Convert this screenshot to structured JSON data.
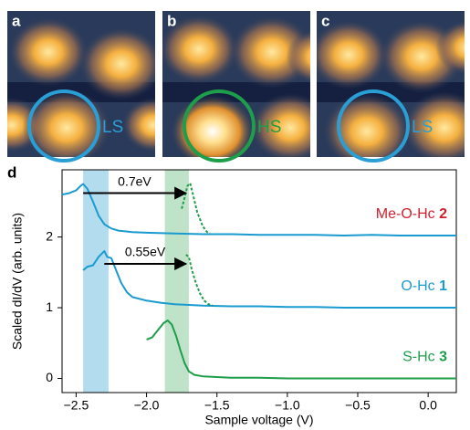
{
  "panels": [
    {
      "label": "a",
      "state": "LS",
      "color": "#2a9fd6"
    },
    {
      "label": "b",
      "state": "HS",
      "color": "#1e9e4a"
    },
    {
      "label": "c",
      "state": "LS",
      "color": "#2a9fd6"
    }
  ],
  "chart_data": {
    "type": "line",
    "panel_label": "d",
    "xlabel": "Sample voltage (V)",
    "ylabel": "Scaled dI/dV (arb. units)",
    "xlim": [
      -2.6,
      0.2
    ],
    "ylim": [
      -0.2,
      2.95
    ],
    "xticks": [
      {
        "value": -2.5,
        "label": "−2.5"
      },
      {
        "value": -2.0,
        "label": "−2.0"
      },
      {
        "value": -1.5,
        "label": "−1.5"
      },
      {
        "value": -1.0,
        "label": "−1.0"
      },
      {
        "value": -0.5,
        "label": "−0.5"
      },
      {
        "value": 0,
        "label": "0.0"
      }
    ],
    "yticks": [
      0,
      1,
      2
    ],
    "bands": [
      {
        "xlim": [
          -2.45,
          -2.27
        ],
        "color": "#b3dcef"
      },
      {
        "xlim": [
          -1.87,
          -1.7
        ],
        "color": "#bfe3c8"
      }
    ],
    "annotations": [
      {
        "text": "0.7eV",
        "x_from": -2.45,
        "x_to": -1.72,
        "y": 2.62
      },
      {
        "text": "0.55eV",
        "x_from": -2.3,
        "x_to": -1.72,
        "y": 1.62
      }
    ],
    "series": [
      {
        "name": "Me-O-Hc 2",
        "color": "#1a9bd0",
        "label_color": "#d0202e",
        "x": [
          -2.6,
          -2.55,
          -2.5,
          -2.47,
          -2.45,
          -2.42,
          -2.38,
          -2.34,
          -2.3,
          -2.25,
          -2.2,
          -2.1,
          -2.0,
          -1.8,
          -1.6,
          -1.4,
          -1.2,
          -1.0,
          -0.8,
          -0.6,
          -0.4,
          -0.2,
          0.0,
          0.2
        ],
        "values": [
          2.6,
          2.62,
          2.66,
          2.72,
          2.75,
          2.68,
          2.5,
          2.3,
          2.18,
          2.12,
          2.09,
          2.07,
          2.06,
          2.05,
          2.04,
          2.04,
          2.03,
          2.03,
          2.03,
          2.02,
          2.03,
          2.02,
          2.02,
          2.02
        ]
      },
      {
        "color": "#1e9e4a",
        "style": "dotted",
        "x": [
          -1.75,
          -1.73,
          -1.71,
          -1.69,
          -1.67,
          -1.64,
          -1.6,
          -1.57,
          -1.55
        ],
        "values": [
          2.4,
          2.55,
          2.72,
          2.76,
          2.6,
          2.35,
          2.15,
          2.07,
          2.05
        ]
      },
      {
        "name": "O-Hc 1",
        "color": "#1a9bd0",
        "label_color": "#1a9bd0",
        "x": [
          -2.45,
          -2.42,
          -2.38,
          -2.34,
          -2.3,
          -2.28,
          -2.25,
          -2.22,
          -2.18,
          -2.14,
          -2.1,
          -2.0,
          -1.9,
          -1.8,
          -1.6,
          -1.4,
          -1.2,
          -1.0,
          -0.8,
          -0.6,
          -0.4,
          -0.2,
          0.0,
          0.2
        ],
        "values": [
          1.53,
          1.58,
          1.6,
          1.72,
          1.8,
          1.72,
          1.7,
          1.55,
          1.35,
          1.22,
          1.15,
          1.1,
          1.07,
          1.05,
          1.03,
          1.02,
          1.02,
          1.01,
          1.01,
          1.0,
          1.0,
          1.0,
          1.0,
          1.0
        ]
      },
      {
        "color": "#1e9e4a",
        "style": "dotted",
        "x": [
          -1.72,
          -1.7,
          -1.68,
          -1.65,
          -1.62,
          -1.59,
          -1.56,
          -1.53
        ],
        "values": [
          1.75,
          1.72,
          1.55,
          1.35,
          1.2,
          1.1,
          1.05,
          1.03
        ]
      },
      {
        "name": "S-Hc 3",
        "color": "#1e9e4a",
        "label_color": "#1e9e4a",
        "x": [
          -2.0,
          -1.96,
          -1.92,
          -1.88,
          -1.85,
          -1.82,
          -1.79,
          -1.76,
          -1.73,
          -1.7,
          -1.66,
          -1.6,
          -1.5,
          -1.4,
          -1.2,
          -1.0,
          -0.8,
          -0.6,
          -0.4,
          -0.2,
          0.0,
          0.2
        ],
        "values": [
          0.55,
          0.58,
          0.68,
          0.78,
          0.82,
          0.76,
          0.6,
          0.4,
          0.22,
          0.1,
          0.05,
          0.03,
          0.02,
          0.01,
          0.01,
          0.0,
          0.0,
          0.0,
          0.0,
          0.0,
          0.0,
          0.0
        ]
      }
    ]
  }
}
